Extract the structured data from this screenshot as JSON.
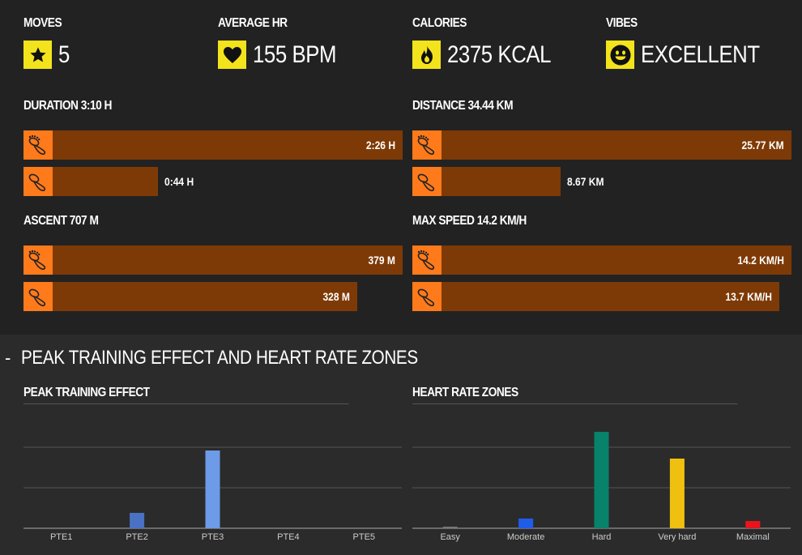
{
  "stats": [
    {
      "label": "MOVES",
      "value": "5",
      "icon": "star-icon"
    },
    {
      "label": "AVERAGE HR",
      "value": "155 BPM",
      "icon": "heart-icon"
    },
    {
      "label": "CALORIES",
      "value": "2375 KCAL",
      "icon": "flame-icon"
    },
    {
      "label": "VIBES",
      "value": "EXCELLENT",
      "icon": "smiley-icon"
    }
  ],
  "colors": {
    "accent_yellow": "#f3e31c",
    "icon_orange": "#ff7a1a",
    "bar_brown": "#7e3a06"
  },
  "sections": {
    "duration": {
      "title": "DURATION 3:10 H",
      "rows": [
        {
          "value": "2:26 H",
          "fraction": 1.0
        },
        {
          "value": "0:44 H",
          "fraction": 0.3
        }
      ]
    },
    "distance": {
      "title": "DISTANCE 34.44 KM",
      "rows": [
        {
          "value": "25.77 KM",
          "fraction": 1.0
        },
        {
          "value": "8.67 KM",
          "fraction": 0.34
        }
      ]
    },
    "ascent": {
      "title": "ASCENT 707 M",
      "rows": [
        {
          "value": "379 M",
          "fraction": 1.0
        },
        {
          "value": "328 M",
          "fraction": 0.87
        }
      ]
    },
    "max_speed": {
      "title": "MAX SPEED 14.2 KM/H",
      "rows": [
        {
          "value": "14.2 KM/H",
          "fraction": 1.0
        },
        {
          "value": "13.7 KM/H",
          "fraction": 0.965
        }
      ]
    }
  },
  "peak_header": {
    "toggle": "-",
    "title": "PEAK TRAINING EFFECT AND HEART RATE ZONES"
  },
  "chart_data": [
    {
      "type": "bar",
      "title": "PEAK TRAINING EFFECT",
      "categories": [
        "PTE1",
        "PTE2",
        "PTE3",
        "PTE4",
        "PTE5"
      ],
      "values": [
        0,
        19,
        96,
        0,
        0
      ],
      "colors": [
        "#5b8ee0",
        "#4a72c4",
        "#6d9be8",
        "#5b8ee0",
        "#5b8ee0"
      ],
      "ylim": [
        0,
        125
      ],
      "grid": true
    },
    {
      "type": "bar",
      "title": "HEART RATE ZONES",
      "categories": [
        "Easy",
        "Moderate",
        "Hard",
        "Very hard",
        "Maximal"
      ],
      "values": [
        2,
        12,
        119,
        86,
        9
      ],
      "colors": [
        "#777777",
        "#1f5de8",
        "#08826a",
        "#f0c010",
        "#e8141c"
      ],
      "ylim": [
        0,
        125
      ],
      "grid": true
    }
  ]
}
